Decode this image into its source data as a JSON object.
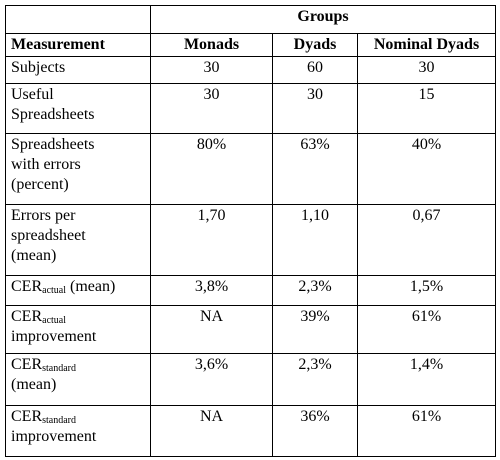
{
  "table": {
    "group_header": "Groups",
    "columns": [
      "Measurement",
      "Monads",
      "Dyads",
      "Nominal Dyads"
    ],
    "rows": [
      {
        "measurement": [
          "Subjects"
        ],
        "values": [
          "30",
          "60",
          "30"
        ]
      },
      {
        "measurement": [
          "Useful",
          "Spreadsheets"
        ],
        "values": [
          "30",
          "30",
          "15"
        ]
      },
      {
        "measurement": [
          "Spreadsheets",
          "with errors",
          "(percent)"
        ],
        "values": [
          "80%",
          "63%",
          "40%"
        ]
      },
      {
        "measurement": [
          "Errors per",
          "spreadsheet",
          "(mean)"
        ],
        "values": [
          "1,70",
          "1,10",
          "0,67"
        ]
      },
      {
        "measurement": [
          {
            "text": "CER",
            "sub": "actual",
            "after": " (mean)"
          }
        ],
        "values": [
          "3,8%",
          "2,3%",
          "1,5%"
        ]
      },
      {
        "measurement": [
          {
            "text": "CER",
            "sub": "actual"
          },
          "improvement"
        ],
        "values": [
          "NA",
          "39%",
          "61%"
        ]
      },
      {
        "measurement": [
          {
            "text": "CER",
            "sub": "standard"
          },
          "(mean)"
        ],
        "values": [
          "3,6%",
          "2,3%",
          "1,4%"
        ]
      },
      {
        "measurement": [
          {
            "text": "CER",
            "sub": "standard"
          },
          "improvement"
        ],
        "values": [
          "NA",
          "36%",
          "61%"
        ]
      }
    ]
  }
}
